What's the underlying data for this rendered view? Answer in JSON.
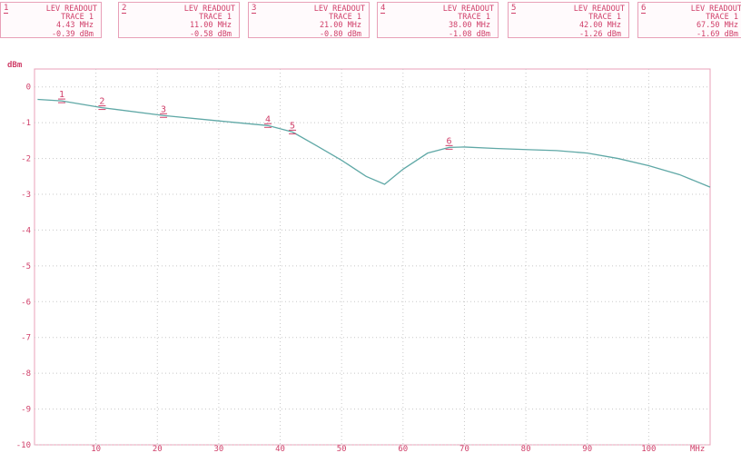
{
  "readouts": [
    {
      "num": "1",
      "title": "LEV READOUT",
      "trace": "TRACE 1",
      "freq": "4.43 MHz",
      "level": "-0.39 dBm"
    },
    {
      "num": "2",
      "title": "LEV READOUT",
      "trace": "TRACE 1",
      "freq": "11.00 MHz",
      "level": "-0.58 dBm"
    },
    {
      "num": "3",
      "title": "LEV READOUT",
      "trace": "TRACE 1",
      "freq": "21.00 MHz",
      "level": "-0.80 dBm"
    },
    {
      "num": "4",
      "title": "LEV READOUT",
      "trace": "TRACE 1",
      "freq": "38.00 MHz",
      "level": "-1.08 dBm"
    },
    {
      "num": "5",
      "title": "LEV READOUT",
      "trace": "TRACE 1",
      "freq": "42.00 MHz",
      "level": "-1.26 dBm"
    },
    {
      "num": "6",
      "title": "LEV READOUT",
      "trace": "TRACE 1",
      "freq": "67.50 MHz",
      "level": "-1.69 dBm"
    }
  ],
  "chart_data": {
    "type": "line",
    "ylabel": "dBm",
    "xunit": "MHz",
    "xlim": [
      0,
      110
    ],
    "ylim": [
      -10,
      0.5
    ],
    "xticks": [
      10,
      20,
      30,
      40,
      50,
      60,
      70,
      80,
      90,
      100
    ],
    "yticks": [
      0,
      -1,
      -2,
      -3,
      -4,
      -5,
      -6,
      -7,
      -8,
      -9,
      -10
    ],
    "grid": true,
    "series": [
      {
        "color": "#5fa8a6",
        "x": [
          0.5,
          4.43,
          11,
          21,
          30,
          38,
          42,
          46,
          50,
          54,
          57,
          60,
          64,
          67.5,
          70,
          75,
          80,
          85,
          90,
          95,
          100,
          105,
          110
        ],
        "y": [
          -0.35,
          -0.39,
          -0.58,
          -0.8,
          -0.95,
          -1.08,
          -1.26,
          -1.65,
          -2.05,
          -2.5,
          -2.72,
          -2.3,
          -1.85,
          -1.69,
          -1.68,
          -1.72,
          -1.75,
          -1.78,
          -1.85,
          -2.0,
          -2.2,
          -2.45,
          -2.8
        ]
      }
    ],
    "markers": [
      {
        "label": "1",
        "x": 4.43,
        "y": -0.39
      },
      {
        "label": "2",
        "x": 11.0,
        "y": -0.58
      },
      {
        "label": "3",
        "x": 21.0,
        "y": -0.8
      },
      {
        "label": "4",
        "x": 38.0,
        "y": -1.08
      },
      {
        "label": "5",
        "x": 42.0,
        "y": -1.26
      },
      {
        "label": "6",
        "x": 67.5,
        "y": -1.69
      }
    ]
  }
}
